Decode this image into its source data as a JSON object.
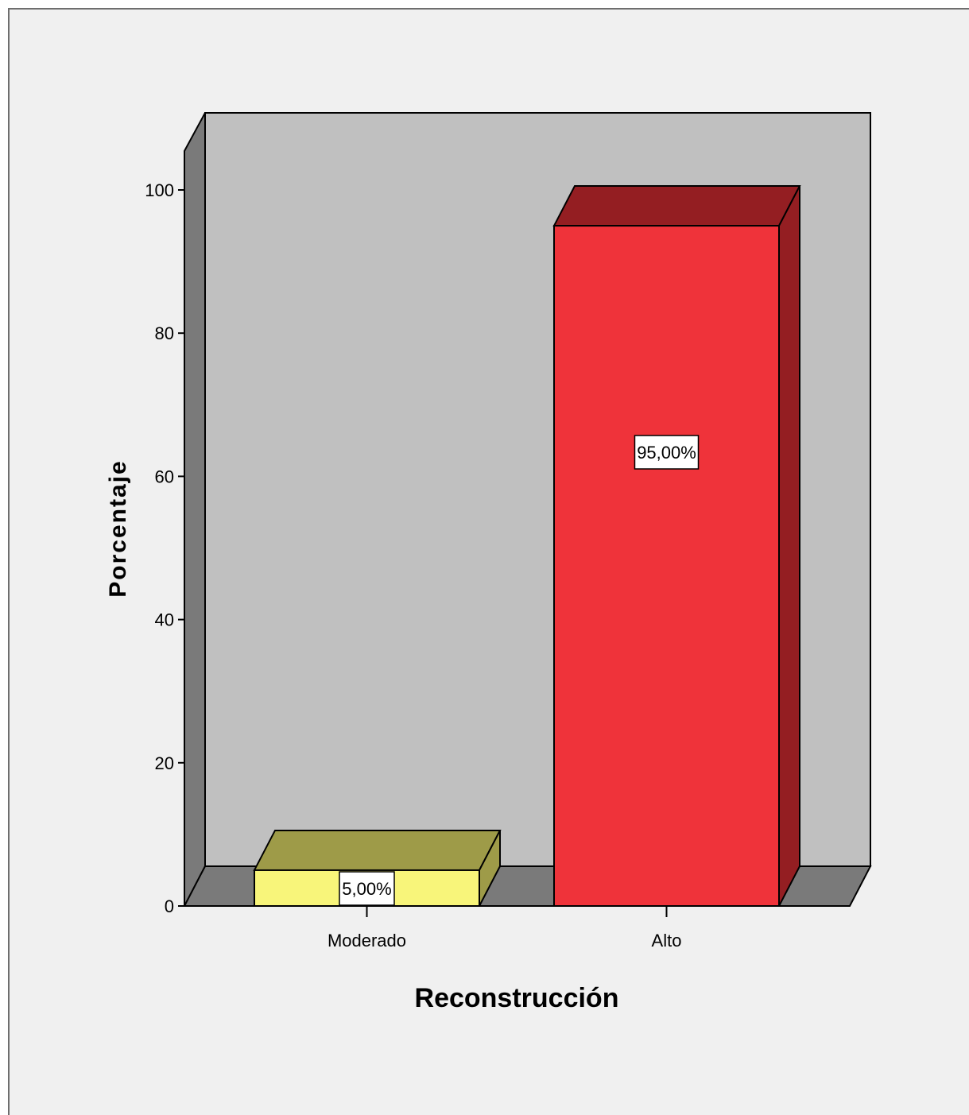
{
  "chart_data": {
    "type": "bar",
    "categories": [
      "Moderado",
      "Alto"
    ],
    "values": [
      5.0,
      95.0
    ],
    "data_labels": [
      "5,00%",
      "95,00%"
    ],
    "colors": [
      "#f8f57a",
      "#ef333a"
    ],
    "top_colors": [
      "#9e9b48",
      "#941e22"
    ],
    "xlabel": "Reconstrucción",
    "ylabel": "Porcentaje",
    "ylim": [
      0,
      100
    ],
    "yticks": [
      "0",
      "20",
      "40",
      "60",
      "80",
      "100"
    ],
    "grid": false,
    "style": "3d",
    "wall_color": "#c0c0c0",
    "floor_color": "#7a7a7a"
  }
}
